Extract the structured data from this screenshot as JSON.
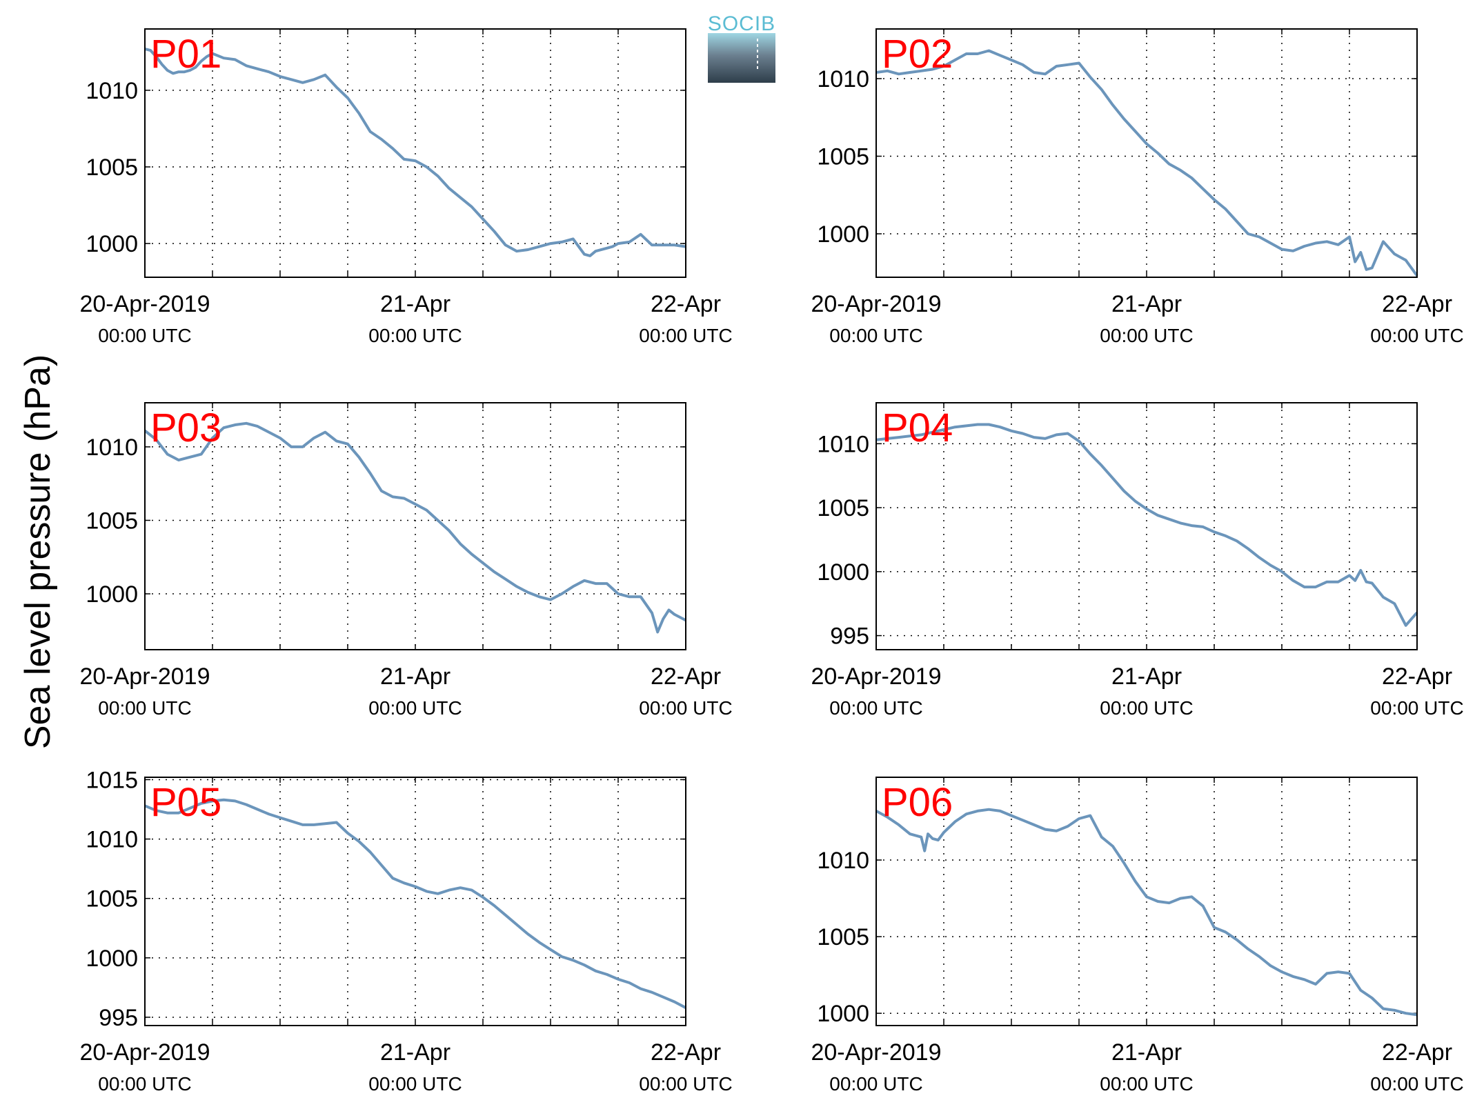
{
  "figure": {
    "ylabel": "Sea level pressure (hPa)",
    "logo_text": "SOCIB",
    "line_color": "#6b95bb",
    "label_color": "#ff0000"
  },
  "chart_data": [
    {
      "type": "line",
      "name": "P01",
      "x_ticks": [
        {
          "main": "20-Apr-2019",
          "sub": "00:00 UTC"
        },
        {
          "main": "21-Apr",
          "sub": "00:00 UTC"
        },
        {
          "main": "22-Apr",
          "sub": "00:00 UTC"
        }
      ],
      "y_ticks": [
        1000,
        1005,
        1010
      ],
      "ylim": [
        997.8,
        1014.0
      ],
      "xlim": [
        0,
        48
      ],
      "grid": true,
      "x": [
        0,
        0.5,
        1,
        1.5,
        2,
        2.5,
        3,
        3.5,
        4,
        4.5,
        5,
        5.5,
        6,
        7,
        8,
        9,
        10,
        11,
        12,
        13,
        14,
        15,
        16,
        17,
        18,
        19,
        20,
        21,
        22,
        23,
        24,
        25,
        26,
        27,
        28,
        29,
        30,
        31,
        32,
        33,
        34,
        35,
        36,
        37,
        38,
        39,
        39.5,
        40,
        41,
        41.5,
        42,
        43,
        44,
        45,
        46,
        47,
        48
      ],
      "y": [
        1012.7,
        1012.6,
        1012.2,
        1011.7,
        1011.3,
        1011.1,
        1011.2,
        1011.2,
        1011.3,
        1011.5,
        1011.9,
        1012.2,
        1012.4,
        1012.1,
        1012.0,
        1011.6,
        1011.4,
        1011.2,
        1010.9,
        1010.7,
        1010.5,
        1010.7,
        1011.0,
        1010.2,
        1009.5,
        1008.5,
        1007.3,
        1006.8,
        1006.2,
        1005.5,
        1005.4,
        1005.0,
        1004.4,
        1003.6,
        1003.0,
        1002.4,
        1001.6,
        1000.8,
        999.9,
        999.5,
        999.6,
        999.8,
        1000.0,
        1000.1,
        1000.3,
        999.3,
        999.2,
        999.5,
        999.7,
        999.8,
        1000.0,
        1000.1,
        1000.6,
        999.9,
        999.9,
        999.9,
        999.8
      ]
    },
    {
      "type": "line",
      "name": "P02",
      "x_ticks": [
        {
          "main": "20-Apr-2019",
          "sub": "00:00 UTC"
        },
        {
          "main": "21-Apr",
          "sub": "00:00 UTC"
        },
        {
          "main": "22-Apr",
          "sub": "00:00 UTC"
        }
      ],
      "y_ticks": [
        1000,
        1005,
        1010
      ],
      "ylim": [
        997.2,
        1013.2
      ],
      "xlim": [
        0,
        48
      ],
      "grid": true,
      "x": [
        0,
        1,
        2,
        3,
        4,
        5,
        6,
        7,
        8,
        9,
        10,
        11,
        12,
        13,
        14,
        15,
        16,
        17,
        18,
        19,
        20,
        21,
        22,
        23,
        24,
        25,
        26,
        27,
        28,
        29,
        30,
        31,
        32,
        33,
        34,
        35,
        36,
        37,
        38,
        39,
        40,
        41,
        42,
        42.5,
        43,
        43.5,
        44,
        45,
        46,
        47,
        48
      ],
      "y": [
        1010.4,
        1010.5,
        1010.3,
        1010.4,
        1010.5,
        1010.6,
        1010.8,
        1011.2,
        1011.6,
        1011.6,
        1011.8,
        1011.5,
        1011.2,
        1010.9,
        1010.4,
        1010.3,
        1010.8,
        1010.9,
        1011.0,
        1010.1,
        1009.3,
        1008.3,
        1007.4,
        1006.6,
        1005.8,
        1005.2,
        1004.5,
        1004.1,
        1003.6,
        1002.9,
        1002.2,
        1001.6,
        1000.8,
        1000.0,
        999.8,
        999.4,
        999.0,
        998.9,
        999.2,
        999.4,
        999.5,
        999.3,
        999.8,
        998.2,
        998.8,
        997.7,
        997.8,
        999.5,
        998.7,
        998.3,
        997.3
      ]
    },
    {
      "type": "line",
      "name": "P03",
      "x_ticks": [
        {
          "main": "20-Apr-2019",
          "sub": "00:00 UTC"
        },
        {
          "main": "21-Apr",
          "sub": "00:00 UTC"
        },
        {
          "main": "22-Apr",
          "sub": "00:00 UTC"
        }
      ],
      "y_ticks": [
        1000,
        1005,
        1010
      ],
      "ylim": [
        996.2,
        1013.0
      ],
      "xlim": [
        0,
        48
      ],
      "grid": true,
      "x": [
        0,
        1,
        2,
        3,
        4,
        5,
        6,
        7,
        8,
        9,
        10,
        11,
        12,
        13,
        14,
        15,
        16,
        17,
        18,
        19,
        20,
        21,
        22,
        23,
        24,
        25,
        26,
        27,
        28,
        29,
        30,
        31,
        32,
        33,
        34,
        35,
        36,
        37,
        38,
        39,
        40,
        41,
        42,
        43,
        44,
        45,
        45.5,
        46,
        46.5,
        47,
        48
      ],
      "y": [
        1011.1,
        1010.5,
        1009.5,
        1009.1,
        1009.3,
        1009.5,
        1010.6,
        1011.3,
        1011.5,
        1011.6,
        1011.4,
        1011.0,
        1010.6,
        1010.0,
        1010.0,
        1010.6,
        1011.0,
        1010.4,
        1010.2,
        1009.3,
        1008.2,
        1007.0,
        1006.6,
        1006.5,
        1006.1,
        1005.7,
        1005.0,
        1004.3,
        1003.4,
        1002.7,
        1002.1,
        1001.5,
        1001.0,
        1000.5,
        1000.1,
        999.8,
        999.6,
        1000.0,
        1000.5,
        1000.9,
        1000.7,
        1000.7,
        1000.0,
        999.8,
        999.8,
        998.7,
        997.4,
        998.3,
        998.9,
        998.6,
        998.2
      ]
    },
    {
      "type": "line",
      "name": "P04",
      "x_ticks": [
        {
          "main": "20-Apr-2019",
          "sub": "00:00 UTC"
        },
        {
          "main": "21-Apr",
          "sub": "00:00 UTC"
        },
        {
          "main": "22-Apr",
          "sub": "00:00 UTC"
        }
      ],
      "y_ticks": [
        995,
        1000,
        1005,
        1010
      ],
      "ylim": [
        993.9,
        1013.2
      ],
      "xlim": [
        0,
        48
      ],
      "grid": true,
      "x": [
        0,
        1,
        2,
        3,
        4,
        5,
        6,
        7,
        8,
        9,
        10,
        11,
        12,
        13,
        14,
        15,
        16,
        17,
        18,
        19,
        20,
        21,
        22,
        23,
        24,
        25,
        26,
        27,
        28,
        29,
        30,
        31,
        32,
        33,
        34,
        35,
        36,
        37,
        38,
        39,
        40,
        41,
        42,
        42.5,
        43,
        43.5,
        44,
        45,
        46,
        47,
        48
      ],
      "y": [
        1010.3,
        1010.4,
        1010.5,
        1010.6,
        1010.7,
        1010.9,
        1011.1,
        1011.3,
        1011.4,
        1011.5,
        1011.5,
        1011.3,
        1011.0,
        1010.8,
        1010.5,
        1010.4,
        1010.7,
        1010.8,
        1010.2,
        1009.2,
        1008.3,
        1007.3,
        1006.3,
        1005.5,
        1004.9,
        1004.4,
        1004.1,
        1003.8,
        1003.6,
        1003.5,
        1003.1,
        1002.8,
        1002.4,
        1001.8,
        1001.1,
        1000.5,
        1000.0,
        999.3,
        998.8,
        998.8,
        999.2,
        999.2,
        999.7,
        999.3,
        1000.1,
        999.2,
        999.1,
        998.0,
        997.5,
        995.8,
        996.8
      ]
    },
    {
      "type": "line",
      "name": "P05",
      "x_ticks": [
        {
          "main": "20-Apr-2019",
          "sub": "00:00 UTC"
        },
        {
          "main": "21-Apr",
          "sub": "00:00 UTC"
        },
        {
          "main": "22-Apr",
          "sub": "00:00 UTC"
        }
      ],
      "y_ticks": [
        995,
        1000,
        1005,
        1010,
        1015
      ],
      "ylim": [
        994.3,
        1015.2
      ],
      "xlim": [
        0,
        48
      ],
      "grid": true,
      "x": [
        0,
        1,
        2,
        3,
        4,
        5,
        6,
        7,
        8,
        9,
        10,
        11,
        12,
        13,
        14,
        15,
        16,
        17,
        18,
        19,
        20,
        21,
        22,
        23,
        24,
        25,
        26,
        27,
        28,
        29,
        30,
        31,
        32,
        33,
        34,
        35,
        36,
        37,
        38,
        39,
        40,
        41,
        42,
        43,
        44,
        45,
        46,
        47,
        48
      ],
      "y": [
        1012.8,
        1012.4,
        1012.2,
        1012.2,
        1012.6,
        1013.0,
        1013.2,
        1013.3,
        1013.2,
        1012.9,
        1012.5,
        1012.1,
        1011.8,
        1011.5,
        1011.2,
        1011.2,
        1011.3,
        1011.4,
        1010.5,
        1009.8,
        1008.9,
        1007.8,
        1006.7,
        1006.3,
        1006.0,
        1005.6,
        1005.4,
        1005.7,
        1005.9,
        1005.7,
        1005.1,
        1004.4,
        1003.6,
        1002.8,
        1002.0,
        1001.3,
        1000.7,
        1000.1,
        999.8,
        999.4,
        998.9,
        998.6,
        998.2,
        997.9,
        997.4,
        997.1,
        996.7,
        996.3,
        995.8
      ]
    },
    {
      "type": "line",
      "name": "P06",
      "x_ticks": [
        {
          "main": "20-Apr-2019",
          "sub": "00:00 UTC"
        },
        {
          "main": "21-Apr",
          "sub": "00:00 UTC"
        },
        {
          "main": "22-Apr",
          "sub": "00:00 UTC"
        }
      ],
      "y_ticks": [
        1000,
        1005,
        1010
      ],
      "ylim": [
        999.2,
        1015.4
      ],
      "xlim": [
        0,
        48
      ],
      "grid": true,
      "x": [
        0,
        1,
        2,
        3,
        4,
        4.3,
        4.6,
        5,
        5.5,
        6,
        7,
        8,
        9,
        10,
        11,
        12,
        13,
        14,
        15,
        16,
        17,
        18,
        19,
        20,
        21,
        22,
        23,
        24,
        25,
        26,
        27,
        28,
        29,
        30,
        31,
        32,
        33,
        34,
        35,
        36,
        37,
        38,
        39,
        40,
        41,
        42,
        43,
        44,
        45,
        46,
        47,
        48
      ],
      "y": [
        1013.2,
        1012.8,
        1012.3,
        1011.7,
        1011.5,
        1010.6,
        1011.7,
        1011.4,
        1011.3,
        1011.8,
        1012.5,
        1013.0,
        1013.2,
        1013.3,
        1013.2,
        1012.9,
        1012.6,
        1012.3,
        1012.0,
        1011.9,
        1012.2,
        1012.7,
        1012.9,
        1011.5,
        1010.9,
        1009.8,
        1008.6,
        1007.6,
        1007.3,
        1007.2,
        1007.5,
        1007.6,
        1007.0,
        1005.6,
        1005.3,
        1004.8,
        1004.2,
        1003.7,
        1003.1,
        1002.7,
        1002.4,
        1002.2,
        1001.9,
        1002.6,
        1002.7,
        1002.6,
        1001.5,
        1001.0,
        1000.3,
        1000.2,
        1000.0,
        999.9
      ]
    }
  ]
}
